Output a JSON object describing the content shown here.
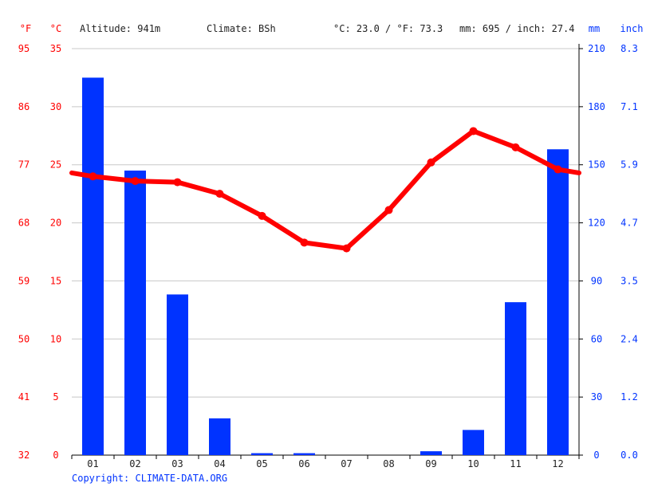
{
  "header": {
    "unit_f": "°F",
    "unit_c": "°C",
    "altitude": "Altitude: 941m",
    "climate": "Climate: BSh",
    "temp_avg": "°C: 23.0 / °F: 73.3",
    "precip_total": "mm: 695 / inch: 27.4",
    "unit_mm": "mm",
    "unit_inch": "inch"
  },
  "footer": {
    "copyright": "Copyright: CLIMATE-DATA.ORG"
  },
  "colors": {
    "temperature": "#ff0000",
    "precipitation": "#0033ff",
    "grid": "#c8c8c8"
  },
  "chart_data": {
    "type": "bar+line",
    "categories": [
      "01",
      "02",
      "03",
      "04",
      "05",
      "06",
      "07",
      "08",
      "09",
      "10",
      "11",
      "12"
    ],
    "series": [
      {
        "name": "mm",
        "type": "bar",
        "axis": "right",
        "values": [
          195,
          147,
          83,
          19,
          1,
          1,
          0,
          0,
          2,
          13,
          79,
          158
        ]
      },
      {
        "name": "°C",
        "type": "line",
        "axis": "left",
        "values": [
          24.0,
          23.6,
          23.5,
          22.5,
          20.6,
          18.3,
          17.8,
          21.1,
          25.2,
          27.9,
          26.5,
          24.6
        ]
      }
    ],
    "y_left": {
      "label": "°C",
      "ylim": [
        0,
        35
      ],
      "ticks": [
        "0",
        "5",
        "10",
        "15",
        "20",
        "25",
        "30",
        "35"
      ]
    },
    "y_left_outer": {
      "label": "°F",
      "ticks": [
        "32",
        "41",
        "50",
        "59",
        "68",
        "77",
        "86",
        "95"
      ]
    },
    "y_right": {
      "label": "mm",
      "ylim": [
        0,
        210
      ],
      "ticks": [
        "0",
        "30",
        "60",
        "90",
        "120",
        "150",
        "180",
        "210"
      ]
    },
    "y_right_outer": {
      "label": "inch",
      "ticks": [
        "0.0",
        "1.2",
        "2.4",
        "3.5",
        "4.7",
        "5.9",
        "7.1",
        "8.3"
      ]
    },
    "grid": true
  }
}
